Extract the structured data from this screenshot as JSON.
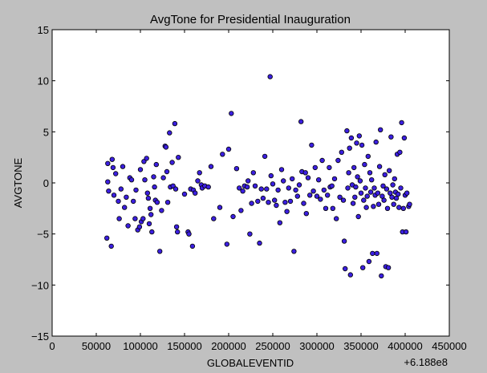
{
  "chart_data": {
    "type": "scatter",
    "title": "AvgTone for Presidential Inauguration",
    "xlabel": "GLOBALEVENTID",
    "ylabel": "AVGTONE",
    "offset_label": "+6.188e8",
    "xlim": [
      0,
      450000
    ],
    "ylim": [
      -15,
      15
    ],
    "xticks": [
      0,
      50000,
      100000,
      150000,
      200000,
      250000,
      300000,
      350000,
      400000,
      450000
    ],
    "yticks": [
      -15,
      -10,
      -5,
      0,
      5,
      10,
      15
    ],
    "xtick_labels": [
      "0",
      "50000",
      "100000",
      "150000",
      "200000",
      "250000",
      "300000",
      "350000",
      "400000",
      "450000"
    ],
    "ytick_labels": [
      "−15",
      "−10",
      "−5",
      "0",
      "5",
      "10",
      "15"
    ],
    "grid": false,
    "colors": {
      "marker_fill": "#3b1fe0",
      "marker_edge": "#000000",
      "axes_bg": "#ffffff",
      "figure_bg": "#c0c0c0"
    },
    "points": [
      [
        63000,
        1.9
      ],
      [
        63000,
        0.1
      ],
      [
        64000,
        -0.8
      ],
      [
        62000,
        -5.4
      ],
      [
        67000,
        -6.2
      ],
      [
        68000,
        2.3
      ],
      [
        69000,
        1.5
      ],
      [
        70000,
        -1.2
      ],
      [
        72000,
        0.9
      ],
      [
        75000,
        -1.8
      ],
      [
        76000,
        -3.5
      ],
      [
        78000,
        -0.6
      ],
      [
        80000,
        1.6
      ],
      [
        82000,
        -2.4
      ],
      [
        84000,
        -1.4
      ],
      [
        86000,
        -4.2
      ],
      [
        88000,
        0.5
      ],
      [
        90000,
        0.3
      ],
      [
        92000,
        -1.8
      ],
      [
        94000,
        -3.5
      ],
      [
        95000,
        -0.7
      ],
      [
        97000,
        -4.6
      ],
      [
        99000,
        -4.3
      ],
      [
        100000,
        1.3
      ],
      [
        101000,
        -3.8
      ],
      [
        103000,
        -3.5
      ],
      [
        104000,
        2.1
      ],
      [
        105000,
        0.3
      ],
      [
        107000,
        2.4
      ],
      [
        108000,
        -1.0
      ],
      [
        109000,
        -1.5
      ],
      [
        110000,
        -4.0
      ],
      [
        111000,
        -2.5
      ],
      [
        112000,
        -3.1
      ],
      [
        113000,
        -4.8
      ],
      [
        115000,
        0.6
      ],
      [
        116000,
        -0.4
      ],
      [
        117000,
        -1.7
      ],
      [
        118000,
        1.8
      ],
      [
        119000,
        -1.9
      ],
      [
        122000,
        -6.7
      ],
      [
        124000,
        -2.7
      ],
      [
        126000,
        0.5
      ],
      [
        128000,
        3.6
      ],
      [
        129000,
        3.5
      ],
      [
        130000,
        1.1
      ],
      [
        131000,
        -1.9
      ],
      [
        133000,
        4.9
      ],
      [
        134000,
        -0.4
      ],
      [
        136000,
        2.0
      ],
      [
        137000,
        -0.3
      ],
      [
        139000,
        5.8
      ],
      [
        140000,
        -0.6
      ],
      [
        141000,
        -4.3
      ],
      [
        142000,
        -4.8
      ],
      [
        143000,
        2.5
      ],
      [
        150000,
        -1.1
      ],
      [
        154000,
        -4.8
      ],
      [
        155000,
        -5.0
      ],
      [
        157000,
        -0.6
      ],
      [
        159000,
        -6.2
      ],
      [
        160000,
        -0.7
      ],
      [
        162000,
        -1.0
      ],
      [
        165000,
        0.2
      ],
      [
        167000,
        1.0
      ],
      [
        169000,
        -0.2
      ],
      [
        170000,
        -0.5
      ],
      [
        173000,
        -0.3
      ],
      [
        177000,
        -0.4
      ],
      [
        180000,
        1.6
      ],
      [
        183000,
        -3.5
      ],
      [
        190000,
        -2.4
      ],
      [
        193000,
        2.8
      ],
      [
        198000,
        -6.0
      ],
      [
        200000,
        3.3
      ],
      [
        203000,
        6.8
      ],
      [
        205000,
        -3.3
      ],
      [
        209000,
        1.4
      ],
      [
        212000,
        -0.5
      ],
      [
        214000,
        -2.7
      ],
      [
        216000,
        -0.8
      ],
      [
        218000,
        -0.3
      ],
      [
        221000,
        -0.4
      ],
      [
        222000,
        0.2
      ],
      [
        224000,
        -5.0
      ],
      [
        226000,
        -2.0
      ],
      [
        228000,
        1.0
      ],
      [
        230000,
        -0.3
      ],
      [
        233000,
        -1.8
      ],
      [
        235000,
        -5.9
      ],
      [
        237000,
        -0.6
      ],
      [
        239000,
        -1.5
      ],
      [
        241000,
        2.6
      ],
      [
        243000,
        -0.6
      ],
      [
        245000,
        -1.9
      ],
      [
        247000,
        10.4
      ],
      [
        248000,
        0.7
      ],
      [
        250000,
        -0.1
      ],
      [
        252000,
        -1.7
      ],
      [
        254000,
        -2.2
      ],
      [
        256000,
        -0.7
      ],
      [
        258000,
        -3.9
      ],
      [
        260000,
        1.3
      ],
      [
        262000,
        0.2
      ],
      [
        264000,
        -1.9
      ],
      [
        266000,
        -2.8
      ],
      [
        268000,
        -0.5
      ],
      [
        270000,
        -1.8
      ],
      [
        272000,
        0.4
      ],
      [
        274000,
        -6.7
      ],
      [
        276000,
        -0.7
      ],
      [
        278000,
        -1.3
      ],
      [
        280000,
        -0.2
      ],
      [
        282000,
        6.0
      ],
      [
        283000,
        1.1
      ],
      [
        285000,
        -2.0
      ],
      [
        287000,
        1.0
      ],
      [
        288000,
        -3.0
      ],
      [
        290000,
        0.5
      ],
      [
        292000,
        -1.2
      ],
      [
        294000,
        3.7
      ],
      [
        296000,
        -0.8
      ],
      [
        298000,
        1.5
      ],
      [
        300000,
        -1.3
      ],
      [
        302000,
        0.3
      ],
      [
        304000,
        -1.6
      ],
      [
        306000,
        2.2
      ],
      [
        308000,
        -0.7
      ],
      [
        310000,
        -2.5
      ],
      [
        312000,
        -1.2
      ],
      [
        314000,
        1.5
      ],
      [
        315000,
        -0.4
      ],
      [
        317000,
        -0.3
      ],
      [
        318000,
        -2.5
      ],
      [
        320000,
        0.4
      ],
      [
        322000,
        -3.5
      ],
      [
        324000,
        2.2
      ],
      [
        326000,
        -1.4
      ],
      [
        328000,
        3.0
      ],
      [
        330000,
        -1.7
      ],
      [
        331000,
        -5.7
      ],
      [
        332000,
        -8.4
      ],
      [
        334000,
        5.1
      ],
      [
        335000,
        -0.5
      ],
      [
        336000,
        1.0
      ],
      [
        337000,
        3.4
      ],
      [
        338000,
        -9.0
      ],
      [
        339000,
        4.4
      ],
      [
        340000,
        -0.2
      ],
      [
        341000,
        -2.0
      ],
      [
        342000,
        1.5
      ],
      [
        343000,
        -1.4
      ],
      [
        344000,
        -0.4
      ],
      [
        345000,
        3.9
      ],
      [
        346000,
        0.6
      ],
      [
        347000,
        -3.3
      ],
      [
        348000,
        4.6
      ],
      [
        349000,
        0.2
      ],
      [
        350000,
        -1.0
      ],
      [
        351000,
        3.7
      ],
      [
        352000,
        -8.3
      ],
      [
        353000,
        -1.7
      ],
      [
        354000,
        1.8
      ],
      [
        355000,
        -0.5
      ],
      [
        356000,
        -2.4
      ],
      [
        357000,
        -1.3
      ],
      [
        358000,
        2.6
      ],
      [
        359000,
        -7.7
      ],
      [
        360000,
        1.0
      ],
      [
        361000,
        -0.9
      ],
      [
        362000,
        0.3
      ],
      [
        363000,
        -6.9
      ],
      [
        364000,
        -2.3
      ],
      [
        365000,
        -0.5
      ],
      [
        366000,
        -1.2
      ],
      [
        367000,
        4.0
      ],
      [
        368000,
        -6.9
      ],
      [
        369000,
        -1.0
      ],
      [
        370000,
        -2.1
      ],
      [
        371000,
        1.6
      ],
      [
        372000,
        5.2
      ],
      [
        373000,
        -9.1
      ],
      [
        374000,
        -1.3
      ],
      [
        375000,
        -0.3
      ],
      [
        376000,
        -1.7
      ],
      [
        377000,
        0.8
      ],
      [
        378000,
        -8.2
      ],
      [
        379000,
        -0.6
      ],
      [
        380000,
        -2.5
      ],
      [
        381000,
        -8.3
      ],
      [
        382000,
        1.2
      ],
      [
        383000,
        -1.0
      ],
      [
        384000,
        4.5
      ],
      [
        385000,
        -1.4
      ],
      [
        386000,
        -0.2
      ],
      [
        387000,
        -2.1
      ],
      [
        388000,
        0.4
      ],
      [
        389000,
        -0.9
      ],
      [
        390000,
        -1.5
      ],
      [
        391000,
        2.8
      ],
      [
        392000,
        -1.1
      ],
      [
        393000,
        -2.4
      ],
      [
        394000,
        3.0
      ],
      [
        395000,
        -0.5
      ],
      [
        396000,
        5.9
      ],
      [
        397000,
        -4.8
      ],
      [
        398000,
        -2.5
      ],
      [
        399000,
        4.4
      ],
      [
        400000,
        -1.2
      ],
      [
        401000,
        -4.8
      ],
      [
        402000,
        -1.0
      ],
      [
        404000,
        -2.3
      ],
      [
        405000,
        -2.1
      ]
    ]
  }
}
